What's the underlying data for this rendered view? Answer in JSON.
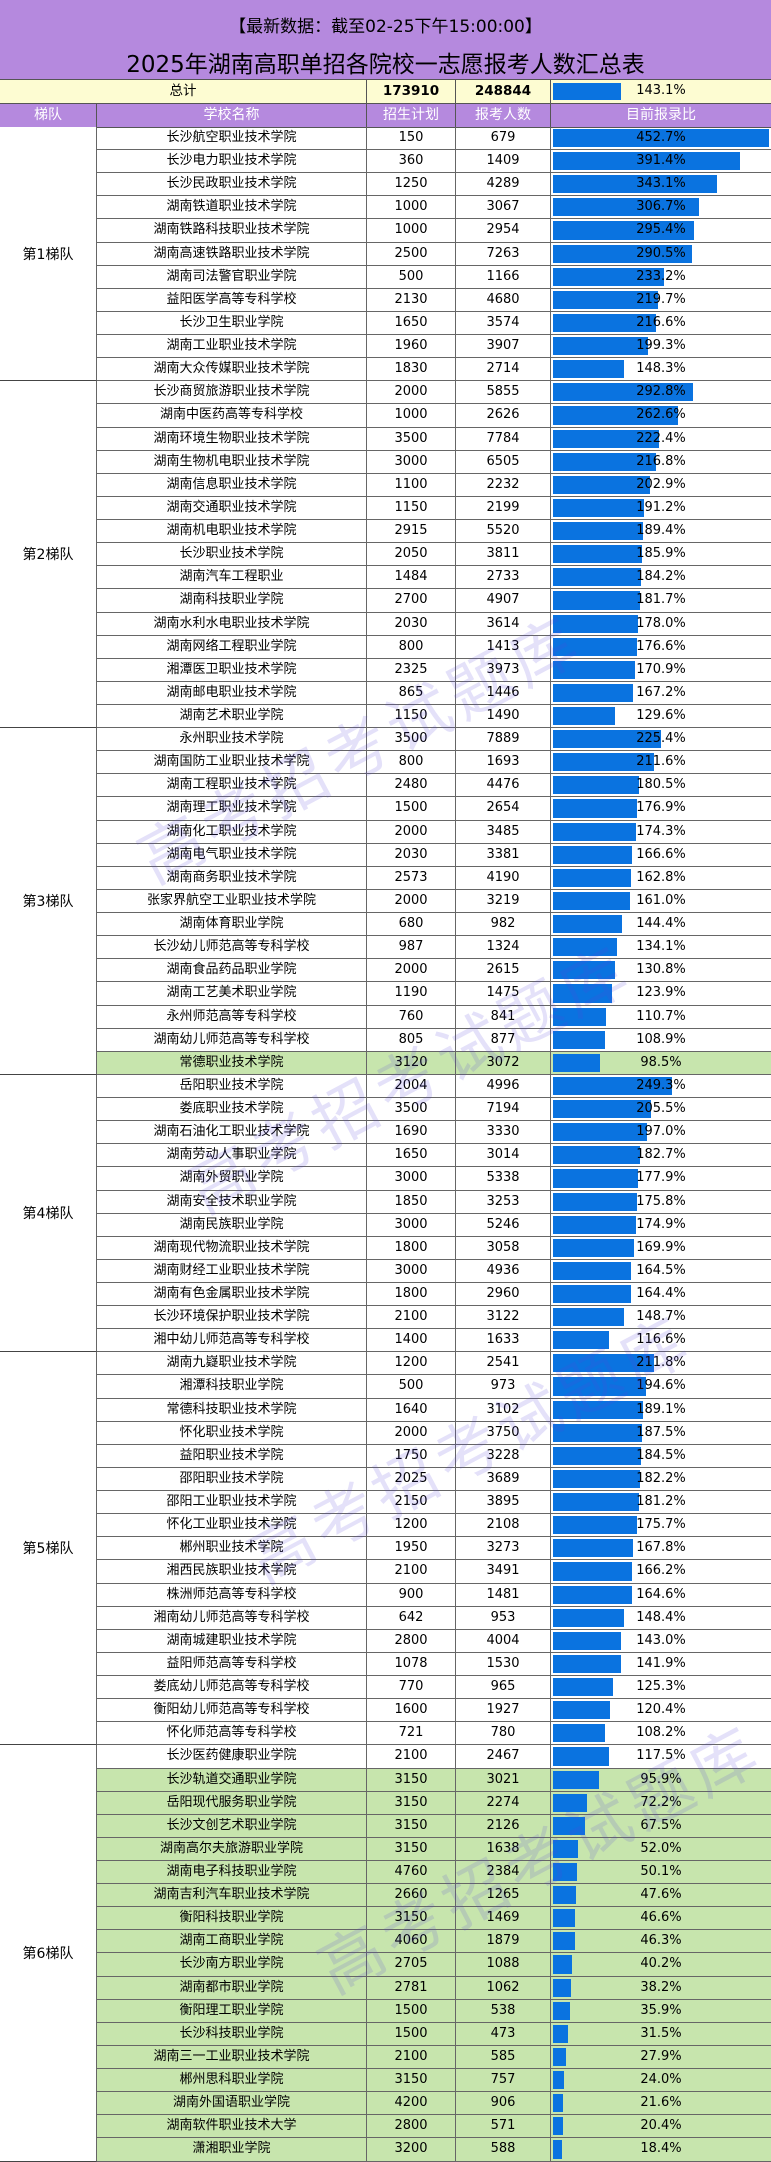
{
  "header": {
    "subtitle": "【最新数据：截至02-25下午15:00:00】",
    "title": "2025年湖南高职单招各院校一志愿报考人数汇总表"
  },
  "total": {
    "label": "总计",
    "plan": "173910",
    "applicants": "248844",
    "ratio": "143.1%",
    "ratio_value": 143.1
  },
  "columns": [
    "梯队",
    "学校名称",
    "招生计划",
    "报考人数",
    "目前报录比"
  ],
  "colors": {
    "header_bg": "#b589de",
    "bar": "#0a73e0",
    "highlight_row": "#c7e5ad",
    "total_bg": "#fdfcd2"
  },
  "watermark": "高考招考试题库",
  "tiers": [
    {
      "name": "第1梯队",
      "rows": [
        [
          "长沙航空职业技术学院",
          "150",
          "679",
          "452.7%"
        ],
        [
          "长沙电力职业技术学院",
          "360",
          "1409",
          "391.4%"
        ],
        [
          "长沙民政职业技术学院",
          "1250",
          "4289",
          "343.1%"
        ],
        [
          "湖南铁道职业技术学院",
          "1000",
          "3067",
          "306.7%"
        ],
        [
          "湖南铁路科技职业技术学院",
          "1000",
          "2954",
          "295.4%"
        ],
        [
          "湖南高速铁路职业技术学院",
          "2500",
          "7263",
          "290.5%"
        ],
        [
          "湖南司法警官职业学院",
          "500",
          "1166",
          "233.2%"
        ],
        [
          "益阳医学高等专科学校",
          "2130",
          "4680",
          "219.7%"
        ],
        [
          "长沙卫生职业学院",
          "1650",
          "3574",
          "216.6%"
        ],
        [
          "湖南工业职业技术学院",
          "1960",
          "3907",
          "199.3%"
        ],
        [
          "湖南大众传媒职业技术学院",
          "1830",
          "2714",
          "148.3%"
        ]
      ]
    },
    {
      "name": "第2梯队",
      "rows": [
        [
          "长沙商贸旅游职业技术学院",
          "2000",
          "5855",
          "292.8%"
        ],
        [
          "湖南中医药高等专科学校",
          "1000",
          "2626",
          "262.6%"
        ],
        [
          "湖南环境生物职业技术学院",
          "3500",
          "7784",
          "222.4%"
        ],
        [
          "湖南生物机电职业技术学院",
          "3000",
          "6505",
          "216.8%"
        ],
        [
          "湖南信息职业技术学院",
          "1100",
          "2232",
          "202.9%"
        ],
        [
          "湖南交通职业技术学院",
          "1150",
          "2199",
          "191.2%"
        ],
        [
          "湖南机电职业技术学院",
          "2915",
          "5520",
          "189.4%"
        ],
        [
          "长沙职业技术学院",
          "2050",
          "3811",
          "185.9%"
        ],
        [
          "湖南汽车工程职业",
          "1484",
          "2733",
          "184.2%"
        ],
        [
          "湖南科技职业学院",
          "2700",
          "4907",
          "181.7%"
        ],
        [
          "湖南水利水电职业技术学院",
          "2030",
          "3614",
          "178.0%"
        ],
        [
          "湖南网络工程职业学院",
          "800",
          "1413",
          "176.6%"
        ],
        [
          "湘潭医卫职业技术学院",
          "2325",
          "3973",
          "170.9%"
        ],
        [
          "湖南邮电职业技术学院",
          "865",
          "1446",
          "167.2%"
        ],
        [
          "湖南艺术职业学院",
          "1150",
          "1490",
          "129.6%"
        ]
      ]
    },
    {
      "name": "第3梯队",
      "rows": [
        [
          "永州职业技术学院",
          "3500",
          "7889",
          "225.4%"
        ],
        [
          "湖南国防工业职业技术学院",
          "800",
          "1693",
          "211.6%"
        ],
        [
          "湖南工程职业技术学院",
          "2480",
          "4476",
          "180.5%"
        ],
        [
          "湖南理工职业技术学院",
          "1500",
          "2654",
          "176.9%"
        ],
        [
          "湖南化工职业技术学院",
          "2000",
          "3485",
          "174.3%"
        ],
        [
          "湖南电气职业技术学院",
          "2030",
          "3381",
          "166.6%"
        ],
        [
          "湖南商务职业技术学院",
          "2573",
          "4190",
          "162.8%"
        ],
        [
          "张家界航空工业职业技术学院",
          "2000",
          "3219",
          "161.0%"
        ],
        [
          "湖南体育职业学院",
          "680",
          "982",
          "144.4%"
        ],
        [
          "长沙幼儿师范高等专科学校",
          "987",
          "1324",
          "134.1%"
        ],
        [
          "湖南食品药品职业学院",
          "2000",
          "2615",
          "130.8%"
        ],
        [
          "湖南工艺美术职业学院",
          "1190",
          "1475",
          "123.9%"
        ],
        [
          "永州师范高等专科学校",
          "760",
          "841",
          "110.7%"
        ],
        [
          "湖南幼儿师范高等专科学校",
          "805",
          "877",
          "108.9%"
        ],
        [
          "常德职业技术学院",
          "3120",
          "3072",
          "98.5%"
        ]
      ]
    },
    {
      "name": "第4梯队",
      "rows": [
        [
          "岳阳职业技术学院",
          "2004",
          "4996",
          "249.3%"
        ],
        [
          "娄底职业技术学院",
          "3500",
          "7194",
          "205.5%"
        ],
        [
          "湖南石油化工职业技术学院",
          "1690",
          "3330",
          "197.0%"
        ],
        [
          "湖南劳动人事职业学院",
          "1650",
          "3014",
          "182.7%"
        ],
        [
          "湖南外贸职业学院",
          "3000",
          "5338",
          "177.9%"
        ],
        [
          "湖南安全技术职业学院",
          "1850",
          "3253",
          "175.8%"
        ],
        [
          "湖南民族职业学院",
          "3000",
          "5246",
          "174.9%"
        ],
        [
          "湖南现代物流职业技术学院",
          "1800",
          "3058",
          "169.9%"
        ],
        [
          "湖南财经工业职业技术学院",
          "3000",
          "4936",
          "164.5%"
        ],
        [
          "湖南有色金属职业技术学院",
          "1800",
          "2960",
          "164.4%"
        ],
        [
          "长沙环境保护职业技术学院",
          "2100",
          "3122",
          "148.7%"
        ],
        [
          "湘中幼儿师范高等专科学校",
          "1400",
          "1633",
          "116.6%"
        ]
      ]
    },
    {
      "name": "第5梯队",
      "rows": [
        [
          "湖南九嶷职业技术学院",
          "1200",
          "2541",
          "211.8%"
        ],
        [
          "湘潭科技职业学院",
          "500",
          "973",
          "194.6%"
        ],
        [
          "常德科技职业技术学院",
          "1640",
          "3102",
          "189.1%"
        ],
        [
          "怀化职业技术学院",
          "2000",
          "3750",
          "187.5%"
        ],
        [
          "益阳职业技术学院",
          "1750",
          "3228",
          "184.5%"
        ],
        [
          "邵阳职业技术学院",
          "2025",
          "3689",
          "182.2%"
        ],
        [
          "邵阳工业职业技术学院",
          "2150",
          "3895",
          "181.2%"
        ],
        [
          "怀化工业职业技术学院",
          "1200",
          "2108",
          "175.7%"
        ],
        [
          "郴州职业技术学院",
          "1950",
          "3273",
          "167.8%"
        ],
        [
          "湘西民族职业技术学院",
          "2100",
          "3491",
          "166.2%"
        ],
        [
          "株洲师范高等专科学校",
          "900",
          "1481",
          "164.6%"
        ],
        [
          "湘南幼儿师范高等专科学校",
          "642",
          "953",
          "148.4%"
        ],
        [
          "湖南城建职业技术学院",
          "2800",
          "4004",
          "143.0%"
        ],
        [
          "益阳师范高等专科学校",
          "1078",
          "1530",
          "141.9%"
        ],
        [
          "娄底幼儿师范高等专科学校",
          "770",
          "965",
          "125.3%"
        ],
        [
          "衡阳幼儿师范高等专科学校",
          "1600",
          "1927",
          "120.4%"
        ],
        [
          "怀化师范高等专科学校",
          "721",
          "780",
          "108.2%"
        ]
      ]
    },
    {
      "name": "第6梯队",
      "rows": [
        [
          "长沙医药健康职业学院",
          "2100",
          "2467",
          "117.5%"
        ],
        [
          "长沙轨道交通职业学院",
          "3150",
          "3021",
          "95.9%"
        ],
        [
          "岳阳现代服务职业学院",
          "3150",
          "2274",
          "72.2%"
        ],
        [
          "长沙文创艺术职业学院",
          "3150",
          "2126",
          "67.5%"
        ],
        [
          "湖南高尔夫旅游职业学院",
          "3150",
          "1638",
          "52.0%"
        ],
        [
          "湖南电子科技职业学院",
          "4760",
          "2384",
          "50.1%"
        ],
        [
          "湖南吉利汽车职业技术学院",
          "2660",
          "1265",
          "47.6%"
        ],
        [
          "衡阳科技职业学院",
          "3150",
          "1469",
          "46.6%"
        ],
        [
          "湖南工商职业学院",
          "4060",
          "1879",
          "46.3%"
        ],
        [
          "长沙南方职业学院",
          "2705",
          "1088",
          "40.2%"
        ],
        [
          "湖南都市职业学院",
          "2781",
          "1062",
          "38.2%"
        ],
        [
          "衡阳理工职业学院",
          "1500",
          "538",
          "35.9%"
        ],
        [
          "长沙科技职业学院",
          "1500",
          "473",
          "31.5%"
        ],
        [
          "湖南三一工业职业技术学院",
          "2100",
          "585",
          "27.9%"
        ],
        [
          "郴州思科职业学院",
          "3150",
          "757",
          "24.0%"
        ],
        [
          "湖南外国语职业学院",
          "4200",
          "906",
          "21.6%"
        ],
        [
          "湖南软件职业技术大学",
          "2800",
          "571",
          "20.4%"
        ],
        [
          "潇湘职业学院",
          "3200",
          "588",
          "18.4%"
        ]
      ]
    }
  ]
}
